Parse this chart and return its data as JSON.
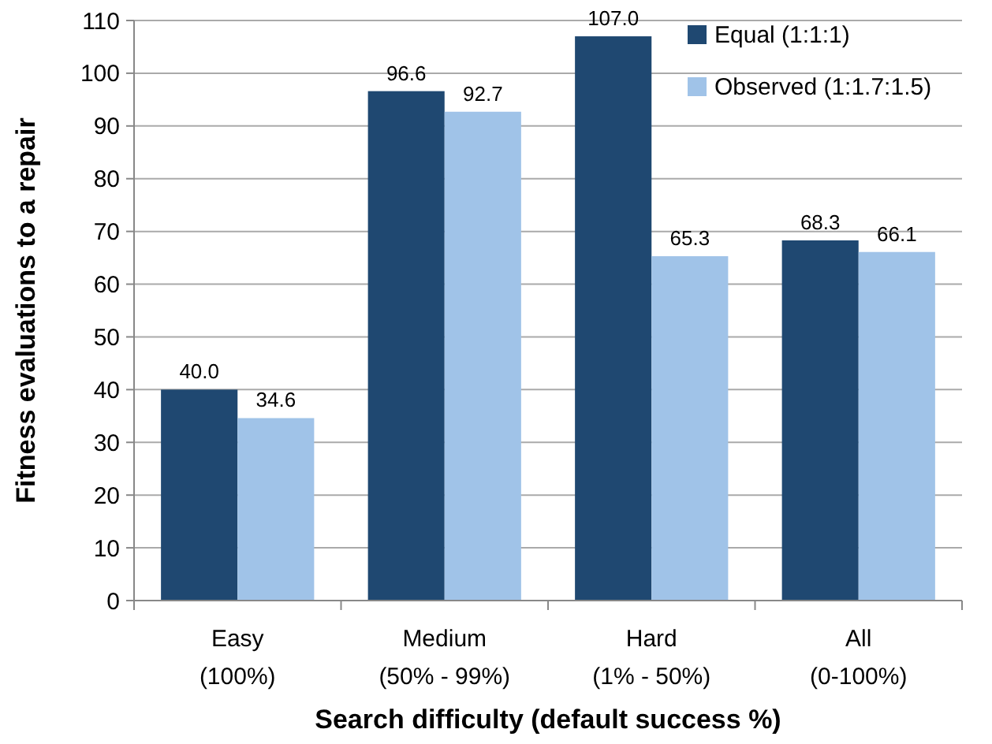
{
  "chart_data": {
    "type": "bar",
    "xlabel": "Search difficulty (default success %)",
    "ylabel": "Fitness evaluations to a repair",
    "categories": [
      "Easy\n(100%)",
      "Medium\n(50% - 99%)",
      "Hard\n(1% - 50%)",
      "All\n(0-100%)"
    ],
    "series": [
      {
        "name": "Equal (1:1:1)",
        "color": "#1f4871",
        "values": [
          40.0,
          96.6,
          107.0,
          68.3
        ],
        "value_labels": [
          "40.0",
          "96.6",
          "107.0",
          "68.3"
        ]
      },
      {
        "name": "Observed (1:1.7:1.5)",
        "color": "#a0c3e8",
        "values": [
          34.6,
          92.7,
          65.3,
          66.1
        ],
        "value_labels": [
          "34.6",
          "92.7",
          "65.3",
          "66.1"
        ]
      }
    ],
    "ylim": [
      0,
      110
    ],
    "yticks": [
      0,
      10,
      20,
      30,
      40,
      50,
      60,
      70,
      80,
      90,
      100,
      110
    ],
    "grid": "y",
    "legend": "top right"
  }
}
